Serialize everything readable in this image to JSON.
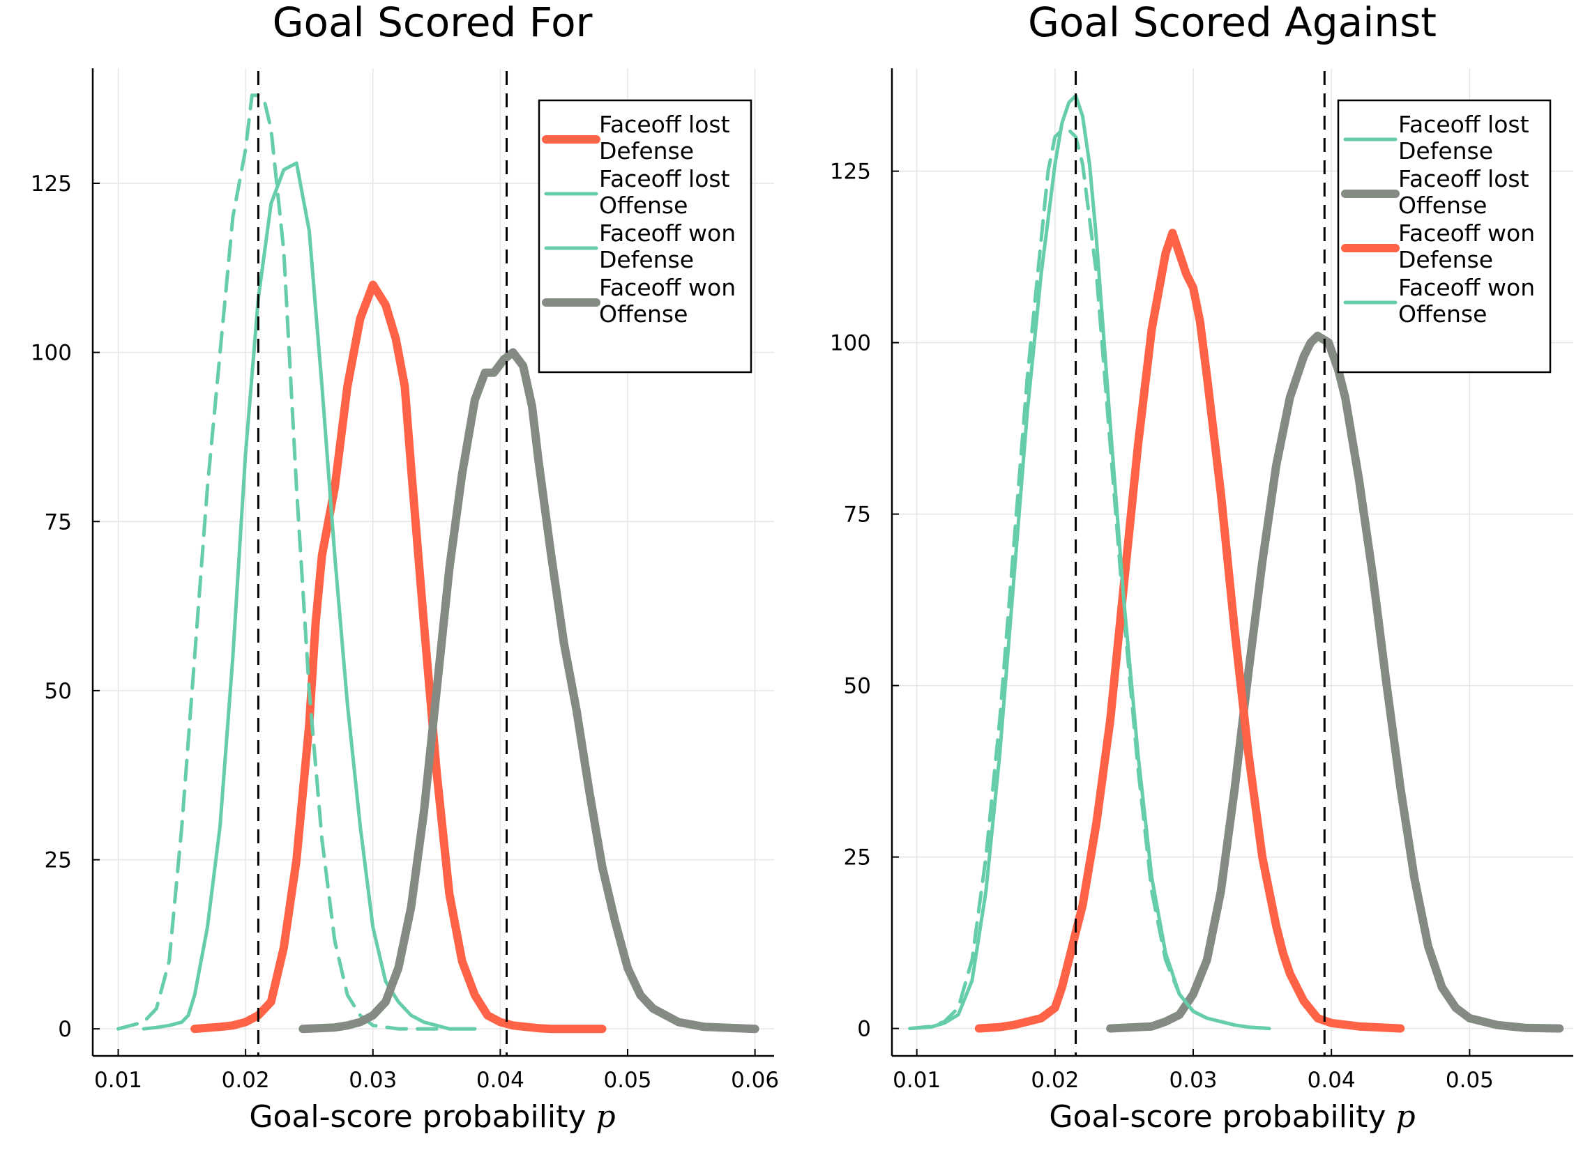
{
  "chart_data": [
    {
      "type": "line",
      "title": "Goal Scored For",
      "xlabel": "Goal-score probability",
      "xlabel_symbol": "p",
      "ylabel": "",
      "xlim": [
        0.008,
        0.0615
      ],
      "ylim": [
        -4,
        142
      ],
      "xticks": [
        0.01,
        0.02,
        0.03,
        0.04,
        0.05,
        0.06
      ],
      "xtick_labels": [
        "0.01",
        "0.02",
        "0.03",
        "0.04",
        "0.05",
        "0.06"
      ],
      "yticks": [
        0,
        25,
        50,
        75,
        100,
        125
      ],
      "ytick_labels": [
        "0",
        "25",
        "50",
        "75",
        "100",
        "125"
      ],
      "grid": true,
      "legend_position": "top-right",
      "vlines": [
        0.021,
        0.0405
      ],
      "series": [
        {
          "name": "Faceoff lost\nDefense",
          "color": "#ff6347",
          "width": 12,
          "dash": "solid",
          "x": [
            0.016,
            0.018,
            0.019,
            0.02,
            0.021,
            0.022,
            0.023,
            0.024,
            0.025,
            0.0255,
            0.026,
            0.027,
            0.028,
            0.029,
            0.03,
            0.031,
            0.0318,
            0.0325,
            0.033,
            0.034,
            0.035,
            0.036,
            0.037,
            0.038,
            0.039,
            0.04,
            0.041,
            0.042,
            0.043,
            0.044,
            0.046,
            0.048
          ],
          "y": [
            0,
            0.3,
            0.5,
            1,
            2,
            4,
            12,
            25,
            45,
            60,
            70,
            80,
            95,
            105,
            110,
            107,
            102,
            95,
            83,
            60,
            38,
            20,
            10,
            5,
            2,
            1,
            0.5,
            0.3,
            0.1,
            0,
            0,
            0
          ]
        },
        {
          "name": "Faceoff lost\nOffense",
          "color": "#66cdaa",
          "width": 5,
          "dash": "dashed",
          "x": [
            0.01,
            0.011,
            0.012,
            0.013,
            0.014,
            0.015,
            0.016,
            0.017,
            0.018,
            0.019,
            0.02,
            0.0205,
            0.021,
            0.0215,
            0.022,
            0.023,
            0.024,
            0.025,
            0.026,
            0.027,
            0.028,
            0.029,
            0.03,
            0.032,
            0.035
          ],
          "y": [
            0,
            0.5,
            1,
            3,
            10,
            30,
            55,
            80,
            100,
            120,
            130,
            138,
            138,
            137,
            133,
            115,
            80,
            50,
            28,
            13,
            5,
            2,
            0.5,
            0,
            0
          ]
        },
        {
          "name": "Faceoff won\nDefense",
          "color": "#66cdaa",
          "width": 5,
          "dash": "solid",
          "x": [
            0.012,
            0.013,
            0.014,
            0.015,
            0.0155,
            0.016,
            0.017,
            0.018,
            0.019,
            0.02,
            0.021,
            0.022,
            0.023,
            0.024,
            0.025,
            0.026,
            0.027,
            0.028,
            0.029,
            0.03,
            0.031,
            0.032,
            0.033,
            0.034,
            0.035,
            0.036,
            0.038
          ],
          "y": [
            0,
            0.2,
            0.5,
            1,
            2,
            5,
            15,
            30,
            55,
            85,
            108,
            122,
            127,
            128,
            118,
            95,
            70,
            48,
            30,
            15,
            7,
            4,
            2,
            1,
            0.5,
            0,
            0
          ]
        },
        {
          "name": "Faceoff won\nOffense",
          "color": "#838b83",
          "width": 12,
          "dash": "solid",
          "x": [
            0.0245,
            0.027,
            0.028,
            0.029,
            0.03,
            0.031,
            0.032,
            0.033,
            0.034,
            0.035,
            0.036,
            0.037,
            0.038,
            0.0388,
            0.0395,
            0.0403,
            0.041,
            0.0418,
            0.0425,
            0.043,
            0.044,
            0.045,
            0.046,
            0.047,
            0.048,
            0.049,
            0.05,
            0.051,
            0.052,
            0.054,
            0.056,
            0.06
          ],
          "y": [
            0,
            0.2,
            0.5,
            1,
            2,
            4,
            9,
            18,
            32,
            50,
            68,
            82,
            93,
            97,
            97,
            99,
            100,
            98,
            92,
            84,
            70,
            57,
            47,
            35,
            24,
            16,
            9,
            5,
            3,
            1,
            0.3,
            0
          ]
        }
      ],
      "legend_entries": [
        "Faceoff lost",
        "Defense",
        "Faceoff lost",
        "Offense",
        "Faceoff won",
        "Defense",
        "Faceoff won",
        "Offense"
      ]
    },
    {
      "type": "line",
      "title": "Goal Scored Against",
      "xlabel": "Goal-score probability",
      "xlabel_symbol": "p",
      "ylabel": "",
      "xlim": [
        0.0082,
        0.0575
      ],
      "ylim": [
        -4,
        140
      ],
      "xticks": [
        0.01,
        0.02,
        0.03,
        0.04,
        0.05
      ],
      "xtick_labels": [
        "0.01",
        "0.02",
        "0.03",
        "0.04",
        "0.05"
      ],
      "yticks": [
        0,
        25,
        50,
        75,
        100,
        125
      ],
      "ytick_labels": [
        "0",
        "25",
        "50",
        "75",
        "100",
        "125"
      ],
      "grid": true,
      "legend_position": "top-right",
      "vlines": [
        0.0215,
        0.0395
      ],
      "series": [
        {
          "name": "Faceoff lost\nDefense",
          "color": "#66cdaa",
          "width": 5,
          "dash": "dashed",
          "x": [
            0.0095,
            0.011,
            0.012,
            0.013,
            0.014,
            0.015,
            0.016,
            0.017,
            0.018,
            0.019,
            0.0195,
            0.02,
            0.0205,
            0.021,
            0.0215,
            0.022,
            0.023,
            0.024,
            0.025,
            0.026,
            0.027,
            0.028,
            0.029,
            0.03,
            0.031,
            0.032,
            0.033,
            0.034,
            0.0355
          ],
          "y": [
            0,
            0.3,
            1,
            3,
            10,
            25,
            45,
            70,
            95,
            115,
            125,
            130,
            131,
            131,
            130,
            126,
            110,
            85,
            60,
            38,
            20,
            10,
            5,
            2.5,
            1.5,
            1,
            0.5,
            0.2,
            0
          ]
        },
        {
          "name": "Faceoff lost\nOffense",
          "color": "#838b83",
          "width": 12,
          "dash": "solid",
          "x": [
            0.024,
            0.027,
            0.028,
            0.029,
            0.03,
            0.031,
            0.032,
            0.033,
            0.034,
            0.035,
            0.036,
            0.037,
            0.038,
            0.0385,
            0.039,
            0.0398,
            0.0405,
            0.041,
            0.042,
            0.043,
            0.044,
            0.045,
            0.046,
            0.047,
            0.048,
            0.049,
            0.05,
            0.052,
            0.054,
            0.0565
          ],
          "y": [
            0,
            0.3,
            1,
            2,
            5,
            10,
            20,
            35,
            52,
            68,
            82,
            92,
            98,
            100,
            101,
            100,
            96,
            92,
            80,
            66,
            50,
            35,
            22,
            12,
            6,
            3,
            1.5,
            0.5,
            0.1,
            0
          ]
        },
        {
          "name": "Faceoff won\nDefense",
          "color": "#ff6347",
          "width": 12,
          "dash": "solid",
          "x": [
            0.0145,
            0.016,
            0.017,
            0.018,
            0.019,
            0.02,
            0.0205,
            0.021,
            0.022,
            0.023,
            0.024,
            0.025,
            0.026,
            0.027,
            0.028,
            0.0285,
            0.029,
            0.0295,
            0.03,
            0.0305,
            0.031,
            0.032,
            0.033,
            0.034,
            0.035,
            0.036,
            0.0365,
            0.037,
            0.038,
            0.039,
            0.04,
            0.042,
            0.045
          ],
          "y": [
            0,
            0.2,
            0.5,
            1,
            1.5,
            3,
            6,
            10,
            18,
            30,
            45,
            65,
            85,
            102,
            113,
            116,
            113,
            110,
            108,
            103,
            95,
            78,
            58,
            40,
            25,
            15,
            11,
            8,
            4,
            1.5,
            0.8,
            0.3,
            0
          ]
        },
        {
          "name": "Faceoff won\nOffense",
          "color": "#66cdaa",
          "width": 5,
          "dash": "solid",
          "x": [
            0.0095,
            0.011,
            0.012,
            0.013,
            0.014,
            0.015,
            0.016,
            0.017,
            0.018,
            0.019,
            0.02,
            0.0205,
            0.021,
            0.0215,
            0.022,
            0.0225,
            0.023,
            0.024,
            0.025,
            0.026,
            0.027,
            0.028,
            0.029,
            0.03,
            0.031,
            0.032,
            0.033,
            0.034,
            0.0355
          ],
          "y": [
            0,
            0.2,
            0.8,
            2,
            7,
            20,
            40,
            65,
            90,
            110,
            126,
            132,
            135,
            136,
            133,
            126,
            115,
            88,
            62,
            40,
            22,
            11,
            5,
            2.5,
            1.5,
            1,
            0.5,
            0.2,
            0
          ]
        }
      ],
      "legend_entries": [
        "Faceoff lost",
        "Defense",
        "Faceoff lost",
        "Offense",
        "Faceoff won",
        "Defense",
        "Faceoff won",
        "Offense"
      ]
    }
  ]
}
